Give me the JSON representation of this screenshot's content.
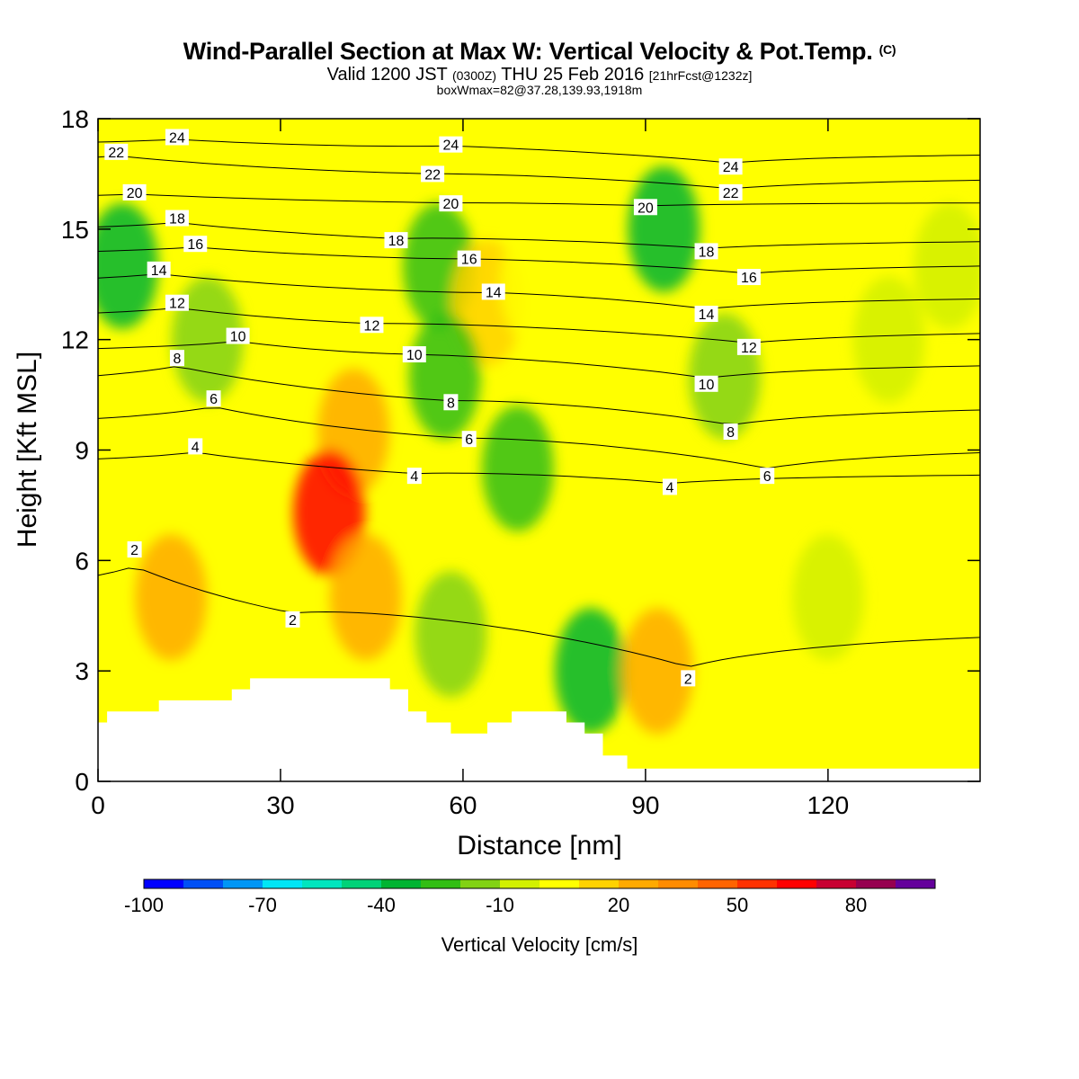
{
  "header": {
    "title": "Wind-Parallel Section at Max W: Vertical Velocity & Pot.Temp.",
    "copyright": "(C)",
    "valid_main": "Valid 1200 JST",
    "valid_z": "(0300Z)",
    "valid_date": "THU 25 Feb 2016",
    "valid_fcst": "[21hrFcst@1232z]",
    "boxinfo": "boxWmax=82@37.28,139.93,1918m"
  },
  "chart_data": {
    "type": "heatmap",
    "title": "Wind-Parallel Section at Max W: Vertical Velocity & Pot.Temp.",
    "xlabel": "Distance [nm]",
    "ylabel": "Height [Kft MSL]",
    "xlim": [
      0,
      145
    ],
    "ylim": [
      0,
      18
    ],
    "xticks": [
      "0",
      "30",
      "60",
      "90",
      "120"
    ],
    "yticks": [
      "0",
      "3",
      "6",
      "9",
      "12",
      "15",
      "18"
    ],
    "colorbar": {
      "label": "Vertical Velocity [cm/s]",
      "tick_labels": [
        "-100",
        "-70",
        "-40",
        "-10",
        "20",
        "50",
        "80"
      ],
      "colors": [
        "#0000ff",
        "#0050f5",
        "#0096f5",
        "#00e6f5",
        "#00e6be",
        "#00d278",
        "#00b432",
        "#32be14",
        "#82d214",
        "#d2f000",
        "#ffff00",
        "#ffd200",
        "#ffaa00",
        "#ff8c00",
        "#ff6400",
        "#ff3200",
        "#ff0000",
        "#c80032",
        "#960050",
        "#64009b"
      ]
    },
    "cells": [
      {
        "x": 4,
        "y": 14,
        "w": -40
      },
      {
        "x": 18,
        "y": 12,
        "w": -20
      },
      {
        "x": 42,
        "y": 9.5,
        "w": 20
      },
      {
        "x": 38,
        "y": 7.3,
        "w": 60
      },
      {
        "x": 12,
        "y": 5,
        "w": 20
      },
      {
        "x": 44,
        "y": 5,
        "w": 20
      },
      {
        "x": 56,
        "y": 14,
        "w": -30
      },
      {
        "x": 64,
        "y": 13,
        "w": 10
      },
      {
        "x": 57,
        "y": 11,
        "w": -30
      },
      {
        "x": 69,
        "y": 8.5,
        "w": -30
      },
      {
        "x": 72,
        "y": 13.5,
        "w": 0
      },
      {
        "x": 58,
        "y": 4,
        "w": -20
      },
      {
        "x": 81,
        "y": 3,
        "w": -35
      },
      {
        "x": 92,
        "y": 3,
        "w": 20
      },
      {
        "x": 93,
        "y": 15,
        "w": -40
      },
      {
        "x": 103,
        "y": 11,
        "w": -20
      },
      {
        "x": 118,
        "y": 15,
        "w": 0
      },
      {
        "x": 130,
        "y": 12,
        "w": -10
      },
      {
        "x": 140,
        "y": 14,
        "w": -5
      },
      {
        "x": 120,
        "y": 5,
        "w": -10
      }
    ],
    "contour_labels": [
      {
        "text": "24",
        "x": 13,
        "y": 17.5
      },
      {
        "text": "22",
        "x": 3,
        "y": 17.1
      },
      {
        "text": "20",
        "x": 6,
        "y": 16.0
      },
      {
        "text": "18",
        "x": 13,
        "y": 15.3
      },
      {
        "text": "16",
        "x": 16,
        "y": 14.6
      },
      {
        "text": "14",
        "x": 10,
        "y": 13.9
      },
      {
        "text": "12",
        "x": 13,
        "y": 13.0
      },
      {
        "text": "10",
        "x": 23,
        "y": 12.1
      },
      {
        "text": "8",
        "x": 13,
        "y": 11.5
      },
      {
        "text": "6",
        "x": 19,
        "y": 10.4
      },
      {
        "text": "4",
        "x": 16,
        "y": 9.1
      },
      {
        "text": "2",
        "x": 6,
        "y": 6.3
      },
      {
        "text": "2",
        "x": 32,
        "y": 4.4
      },
      {
        "text": "24",
        "x": 58,
        "y": 17.3
      },
      {
        "text": "22",
        "x": 55,
        "y": 16.5
      },
      {
        "text": "20",
        "x": 58,
        "y": 15.7
      },
      {
        "text": "18",
        "x": 49,
        "y": 14.7
      },
      {
        "text": "16",
        "x": 61,
        "y": 14.2
      },
      {
        "text": "14",
        "x": 65,
        "y": 13.3
      },
      {
        "text": "12",
        "x": 45,
        "y": 12.4
      },
      {
        "text": "10",
        "x": 52,
        "y": 11.6
      },
      {
        "text": "8",
        "x": 58,
        "y": 10.3
      },
      {
        "text": "6",
        "x": 61,
        "y": 9.3
      },
      {
        "text": "4",
        "x": 52,
        "y": 8.3
      },
      {
        "text": "24",
        "x": 104,
        "y": 16.7
      },
      {
        "text": "22",
        "x": 104,
        "y": 16.0
      },
      {
        "text": "20",
        "x": 90,
        "y": 15.6
      },
      {
        "text": "18",
        "x": 100,
        "y": 14.4
      },
      {
        "text": "16",
        "x": 107,
        "y": 13.7
      },
      {
        "text": "14",
        "x": 100,
        "y": 12.7
      },
      {
        "text": "12",
        "x": 107,
        "y": 11.8
      },
      {
        "text": "10",
        "x": 100,
        "y": 10.8
      },
      {
        "text": "8",
        "x": 104,
        "y": 9.5
      },
      {
        "text": "6",
        "x": 110,
        "y": 8.3
      },
      {
        "text": "4",
        "x": 94,
        "y": 8.0
      },
      {
        "text": "2",
        "x": 97,
        "y": 2.8
      }
    ]
  }
}
